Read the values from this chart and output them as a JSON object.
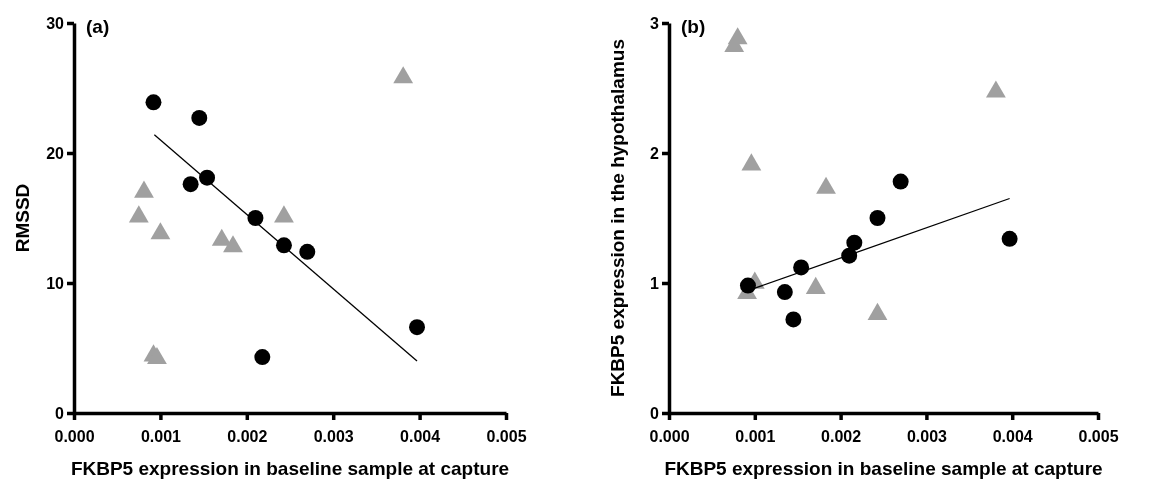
{
  "chart_data": [
    {
      "type": "scatter",
      "xlabel": "FKBP5 expression in baseline sample at capture",
      "ylabel": "RMSSD",
      "annotations": [
        "(a)"
      ],
      "xlim": [
        0,
        0.005
      ],
      "xticks": [
        {
          "value": 0,
          "label": "0.000"
        },
        {
          "value": 0.001,
          "label": "0.001"
        },
        {
          "value": 0.002,
          "label": "0.002"
        },
        {
          "value": 0.003,
          "label": "0.003"
        },
        {
          "value": 0.004,
          "label": "0.004"
        },
        {
          "value": 0.005,
          "label": "0.005"
        }
      ],
      "ylim": [
        0,
        30
      ],
      "yticks": [
        0,
        10,
        20,
        30
      ],
      "grid": false,
      "series": [
        {
          "type": "scatter",
          "marker": "triangle",
          "color": "#a0a0a0",
          "x": [
            0.00081,
            0.00075,
            0.001,
            0.00171,
            0.00184,
            0.00243,
            0.00092,
            0.00096,
            0.00381
          ],
          "values": [
            17.0,
            15.1,
            13.8,
            13.3,
            12.8,
            15.1,
            4.4,
            4.2,
            25.8
          ]
        },
        {
          "type": "scatter",
          "marker": "circle",
          "color": "#000000",
          "x": [
            0.00092,
            0.00145,
            0.00135,
            0.00154,
            0.0021,
            0.00243,
            0.0027,
            0.00218,
            0.00397
          ],
          "values": [
            23.9,
            22.7,
            17.6,
            18.1,
            15.0,
            12.9,
            12.4,
            4.3,
            6.6
          ]
        },
        {
          "type": "line",
          "color": "#000000",
          "x": [
            0.00093,
            0.00397
          ],
          "values": [
            21.4,
            4.0
          ]
        }
      ]
    },
    {
      "type": "scatter",
      "xlabel": "FKBP5 expression in baseline sample at capture",
      "ylabel": "FKBP5 expression in the hypothalamus",
      "annotations": [
        "(b)"
      ],
      "xlim": [
        0,
        0.005
      ],
      "xticks": [
        {
          "value": 0,
          "label": "0.000"
        },
        {
          "value": 0.001,
          "label": "0.001"
        },
        {
          "value": 0.002,
          "label": "0.002"
        },
        {
          "value": 0.003,
          "label": "0.003"
        },
        {
          "value": 0.004,
          "label": "0.004"
        },
        {
          "value": 0.005,
          "label": "0.005"
        }
      ],
      "ylim": [
        0,
        3
      ],
      "yticks": [
        0,
        1,
        2,
        3
      ],
      "grid": false,
      "series": [
        {
          "type": "scatter",
          "marker": "triangle",
          "color": "#a0a0a0",
          "x": [
            0.00076,
            0.0008,
            0.00096,
            0.00183,
            0.00381,
            0.001,
            0.00091,
            0.00171,
            0.00243
          ],
          "values": [
            2.82,
            2.88,
            1.91,
            1.73,
            2.47,
            1.0,
            0.92,
            0.96,
            0.76
          ]
        },
        {
          "type": "scatter",
          "marker": "circle",
          "color": "#000000",
          "x": [
            0.00092,
            0.00135,
            0.00145,
            0.00154,
            0.0021,
            0.00216,
            0.00243,
            0.0027,
            0.00397
          ],
          "values": [
            0.98,
            0.93,
            0.72,
            1.12,
            1.21,
            1.31,
            1.5,
            1.78,
            1.34
          ]
        },
        {
          "type": "line",
          "color": "#000000",
          "x": [
            0.001,
            0.00397
          ],
          "values": [
            0.96,
            1.65
          ]
        }
      ]
    }
  ]
}
